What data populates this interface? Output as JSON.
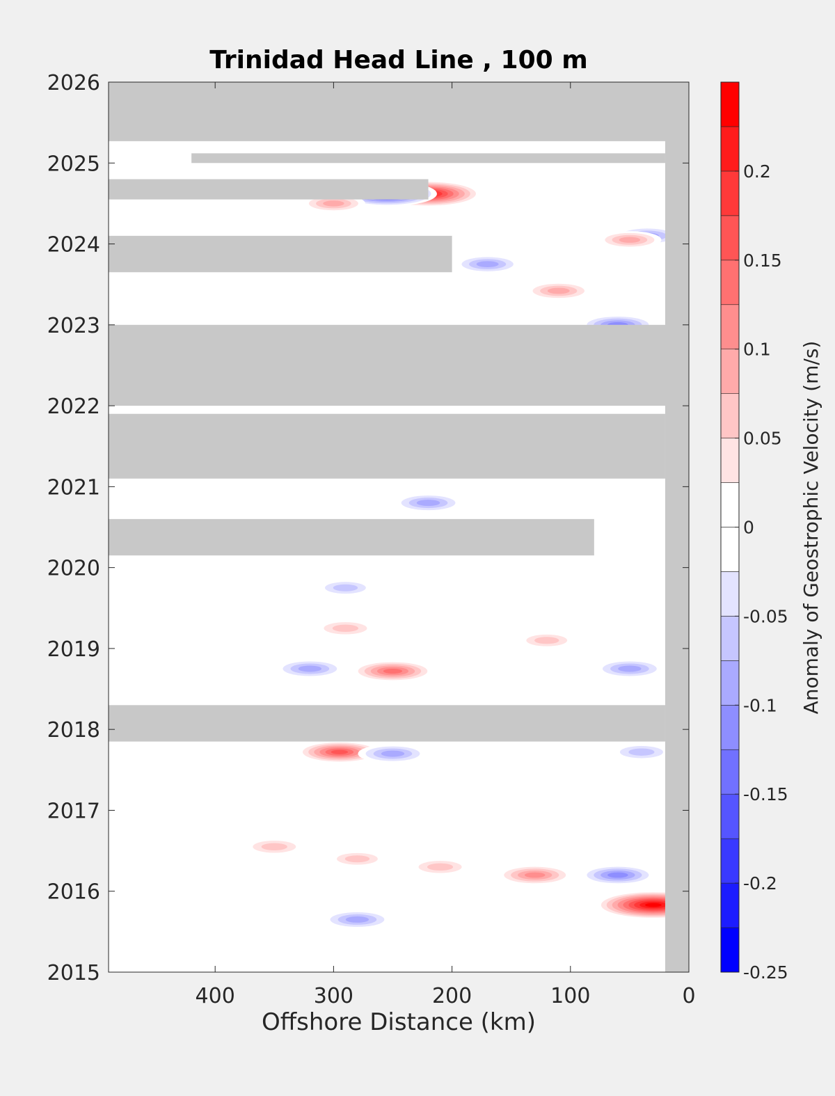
{
  "chart_data": {
    "type": "heatmap",
    "title": "Trinidad Head Line , 100 m",
    "xlabel": "Offshore Distance (km)",
    "ylabel": "",
    "x_reversed": true,
    "xlim": [
      490,
      0
    ],
    "ylim": [
      2015,
      2026
    ],
    "x_ticks": [
      400,
      300,
      200,
      100,
      0
    ],
    "y_ticks": [
      2015,
      2016,
      2017,
      2018,
      2019,
      2020,
      2021,
      2022,
      2023,
      2024,
      2025,
      2026
    ],
    "colorbar": {
      "label": "Anomaly of Geostrophic Velocity (m/s)",
      "range": [
        -0.25,
        0.25
      ],
      "levels": [
        -0.25,
        -0.225,
        -0.2,
        -0.175,
        -0.15,
        -0.125,
        -0.1,
        -0.075,
        -0.05,
        -0.025,
        0,
        0.025,
        0.05,
        0.075,
        0.1,
        0.125,
        0.15,
        0.175,
        0.2,
        0.225,
        0.25
      ],
      "ticks": [
        -0.25,
        -0.2,
        -0.15,
        -0.1,
        -0.05,
        0,
        0.05,
        0.1,
        0.15,
        0.2
      ],
      "tick_labels": [
        "-0.25",
        "-0.2",
        "-0.15",
        "-0.1",
        "-0.05",
        "0",
        "0.05",
        "0.1",
        "0.15",
        "0.2"
      ],
      "negative_color": "#0000ff",
      "positive_color": "#ff0000",
      "zero_color": "#ffffff"
    },
    "missing_color": "#c8c8c8",
    "no_data_regions": [
      {
        "time": [
          2025.27,
          2026.0
        ],
        "x": [
          490,
          0
        ]
      },
      {
        "time": [
          2025.0,
          2025.12
        ],
        "x": [
          420,
          20
        ]
      },
      {
        "time": [
          2024.55,
          2024.8
        ],
        "x": [
          490,
          220
        ]
      },
      {
        "time": [
          2023.65,
          2024.1
        ],
        "x": [
          490,
          200
        ]
      },
      {
        "time": [
          2022.0,
          2023.0
        ],
        "x": [
          490,
          0
        ]
      },
      {
        "time": [
          2021.1,
          2021.9
        ],
        "x": [
          490,
          20
        ]
      },
      {
        "time": [
          2020.15,
          2020.6
        ],
        "x": [
          490,
          80
        ]
      },
      {
        "time": [
          2017.85,
          2018.3
        ],
        "x": [
          490,
          20
        ]
      }
    ],
    "anomalies": [
      {
        "x": 220,
        "t": 2024.62,
        "v": 0.22
      },
      {
        "x": 255,
        "t": 2024.62,
        "v": -0.2
      },
      {
        "x": 30,
        "t": 2015.83,
        "v": 0.25
      },
      {
        "x": 250,
        "t": 2018.72,
        "v": 0.14
      },
      {
        "x": 295,
        "t": 2017.72,
        "v": 0.15
      },
      {
        "x": 130,
        "t": 2016.2,
        "v": 0.12
      },
      {
        "x": 60,
        "t": 2016.2,
        "v": -0.12
      },
      {
        "x": 50,
        "t": 2018.75,
        "v": -0.1
      },
      {
        "x": 110,
        "t": 2023.42,
        "v": 0.09
      },
      {
        "x": 60,
        "t": 2023.0,
        "v": -0.12
      },
      {
        "x": 35,
        "t": 2024.1,
        "v": -0.1
      },
      {
        "x": 50,
        "t": 2024.05,
        "v": 0.08
      },
      {
        "x": 320,
        "t": 2018.75,
        "v": -0.1
      },
      {
        "x": 280,
        "t": 2015.65,
        "v": -0.1
      },
      {
        "x": 220,
        "t": 2020.8,
        "v": -0.1
      },
      {
        "x": 170,
        "t": 2023.75,
        "v": -0.09
      },
      {
        "x": 300,
        "t": 2024.5,
        "v": 0.08
      },
      {
        "x": 250,
        "t": 2017.7,
        "v": -0.1
      },
      {
        "x": 290,
        "t": 2019.25,
        "v": 0.07
      },
      {
        "x": 290,
        "t": 2019.75,
        "v": -0.06
      },
      {
        "x": 350,
        "t": 2016.55,
        "v": 0.07
      },
      {
        "x": 210,
        "t": 2016.3,
        "v": 0.07
      },
      {
        "x": 280,
        "t": 2016.4,
        "v": 0.06
      },
      {
        "x": 40,
        "t": 2017.72,
        "v": -0.07
      },
      {
        "x": 120,
        "t": 2019.1,
        "v": 0.06
      }
    ]
  }
}
